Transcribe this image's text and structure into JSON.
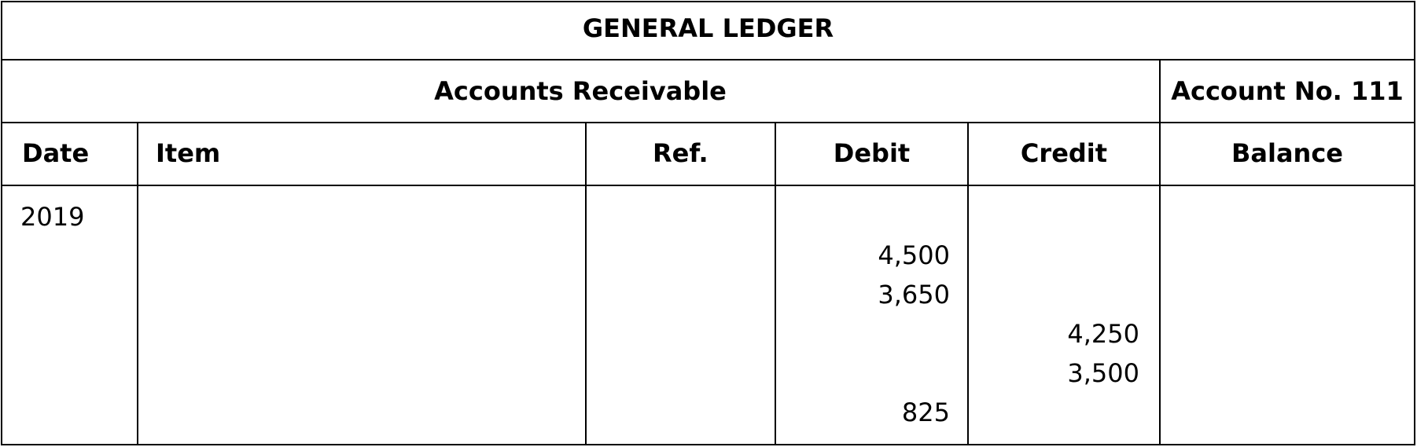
{
  "title": "GENERAL LEDGER",
  "account_name": "Accounts Receivable",
  "account_number": "Account No. 111",
  "columns": [
    "Date",
    "Item",
    "Ref.",
    "Debit",
    "Credit",
    "Balance"
  ],
  "rows": [
    {
      "date": "2019",
      "item": "",
      "ref": "",
      "debit": "",
      "credit": "",
      "balance": ""
    },
    {
      "date": "",
      "item": "",
      "ref": "",
      "debit": "4,500",
      "credit": "",
      "balance": ""
    },
    {
      "date": "",
      "item": "",
      "ref": "",
      "debit": "3,650",
      "credit": "",
      "balance": ""
    },
    {
      "date": "",
      "item": "",
      "ref": "",
      "debit": "",
      "credit": "4,250",
      "balance": ""
    },
    {
      "date": "",
      "item": "",
      "ref": "",
      "debit": "",
      "credit": "3,500",
      "balance": ""
    },
    {
      "date": "",
      "item": "",
      "ref": "",
      "debit": "825",
      "credit": "",
      "balance": ""
    }
  ]
}
